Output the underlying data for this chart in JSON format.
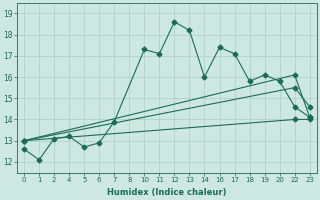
{
  "background_color": "#cde8e0",
  "grid_color": "#aacfc5",
  "line_color": "#1a6b5a",
  "xlabel": "Humidex (Indice chaleur)",
  "xlim": [
    -0.5,
    19.5
  ],
  "ylim": [
    11.5,
    19.5
  ],
  "xtick_labels": [
    "0",
    "1",
    "2",
    "4",
    "5",
    "6",
    "7",
    "8",
    "10",
    "11",
    "12",
    "13",
    "14",
    "16",
    "17",
    "18",
    "19",
    "20",
    "22",
    "23"
  ],
  "ytick_positions": [
    12,
    13,
    14,
    15,
    16,
    17,
    18,
    19
  ],
  "line1": {
    "x": [
      0,
      1,
      2,
      3,
      4,
      5,
      6,
      8,
      9,
      10,
      11,
      12,
      13,
      14,
      15,
      16,
      17,
      18,
      19
    ],
    "y": [
      12.6,
      12.1,
      13.1,
      13.2,
      12.7,
      12.9,
      13.9,
      17.3,
      17.1,
      18.6,
      18.2,
      16.0,
      17.4,
      17.1,
      15.8,
      16.1,
      15.8,
      14.6,
      14.1
    ]
  },
  "line2": {
    "x": [
      0,
      18,
      19
    ],
    "y": [
      13.0,
      14.0,
      14.0
    ]
  },
  "line3": {
    "x": [
      0,
      18,
      19
    ],
    "y": [
      13.0,
      15.5,
      14.6
    ]
  },
  "line4": {
    "x": [
      0,
      18,
      19
    ],
    "y": [
      13.0,
      16.1,
      14.1
    ]
  }
}
